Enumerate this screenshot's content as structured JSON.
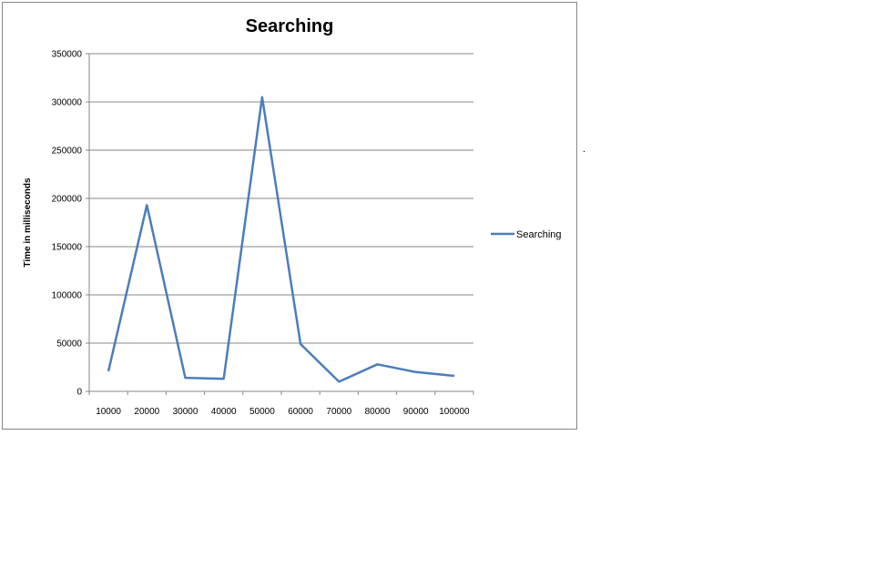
{
  "chart_data": {
    "type": "line",
    "title": "Searching",
    "xlabel": "",
    "ylabel": "Time in milliseconds",
    "categories": [
      "10000",
      "20000",
      "30000",
      "40000",
      "50000",
      "60000",
      "70000",
      "80000",
      "90000",
      "100000"
    ],
    "series": [
      {
        "name": "Searching",
        "color": "#4a7ebb",
        "values": [
          21000,
          193000,
          14000,
          13000,
          305000,
          49000,
          10000,
          28000,
          20000,
          16000
        ]
      }
    ],
    "ylim": [
      0,
      350000
    ],
    "yticks": [
      0,
      50000,
      100000,
      150000,
      200000,
      250000,
      300000,
      350000
    ],
    "grid": true,
    "legend_position": "right"
  },
  "stray_mark": "."
}
